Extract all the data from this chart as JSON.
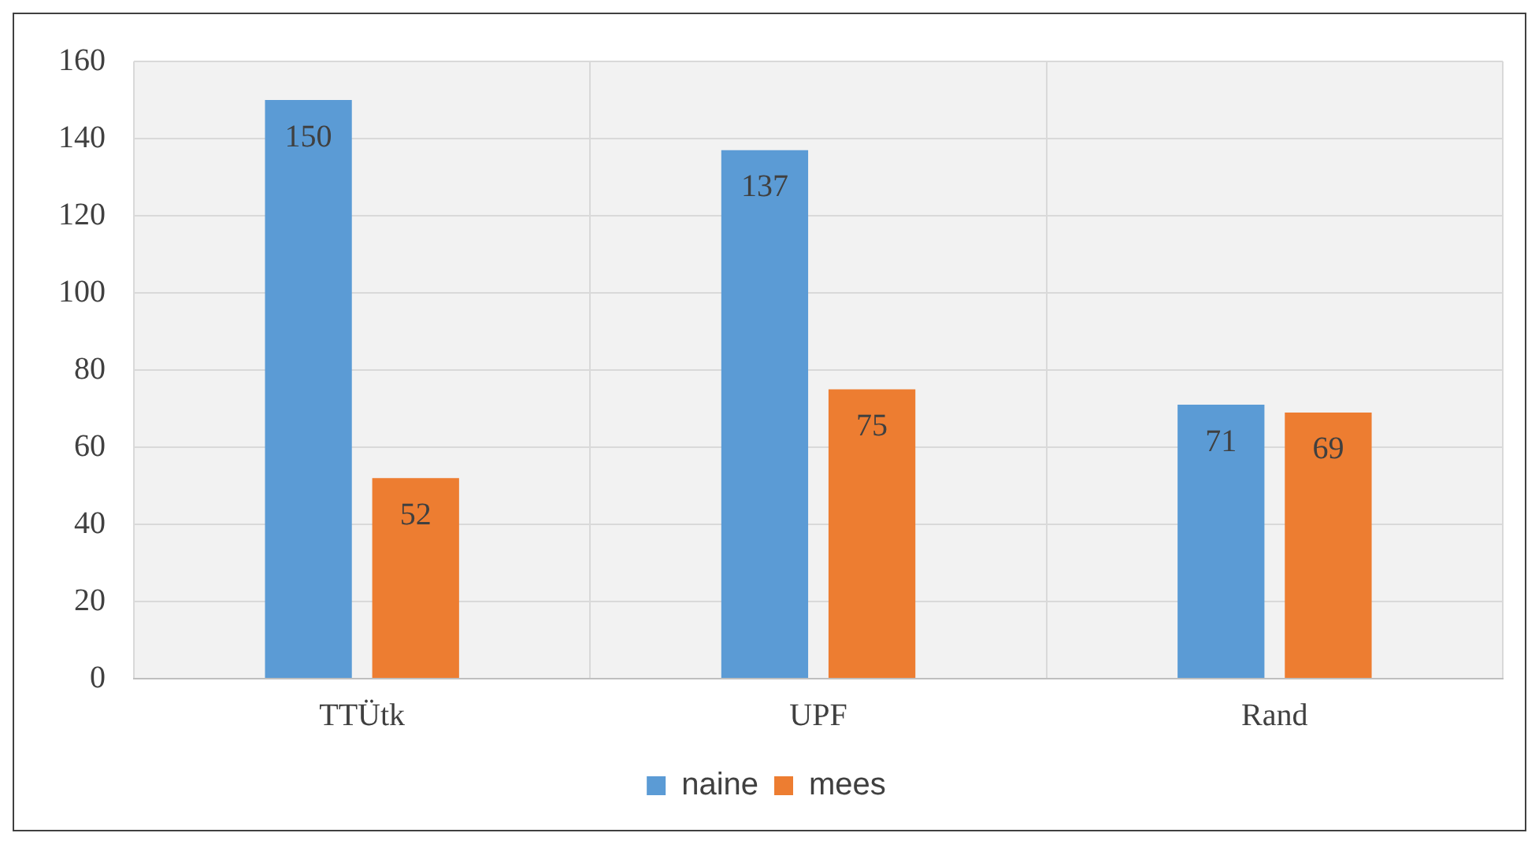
{
  "chart_data": {
    "type": "bar",
    "categories": [
      "TTÜtk",
      "UPF",
      "Rand"
    ],
    "series": [
      {
        "name": "naine",
        "color": "#5b9bd5",
        "values": [
          150,
          137,
          71
        ]
      },
      {
        "name": "mees",
        "color": "#ed7d31",
        "values": [
          52,
          75,
          69
        ]
      }
    ],
    "ylim": [
      0,
      160
    ],
    "yticks": [
      0,
      20,
      40,
      60,
      80,
      100,
      120,
      140,
      160
    ],
    "grid": true,
    "legend": "bottom",
    "data_labels": true
  }
}
